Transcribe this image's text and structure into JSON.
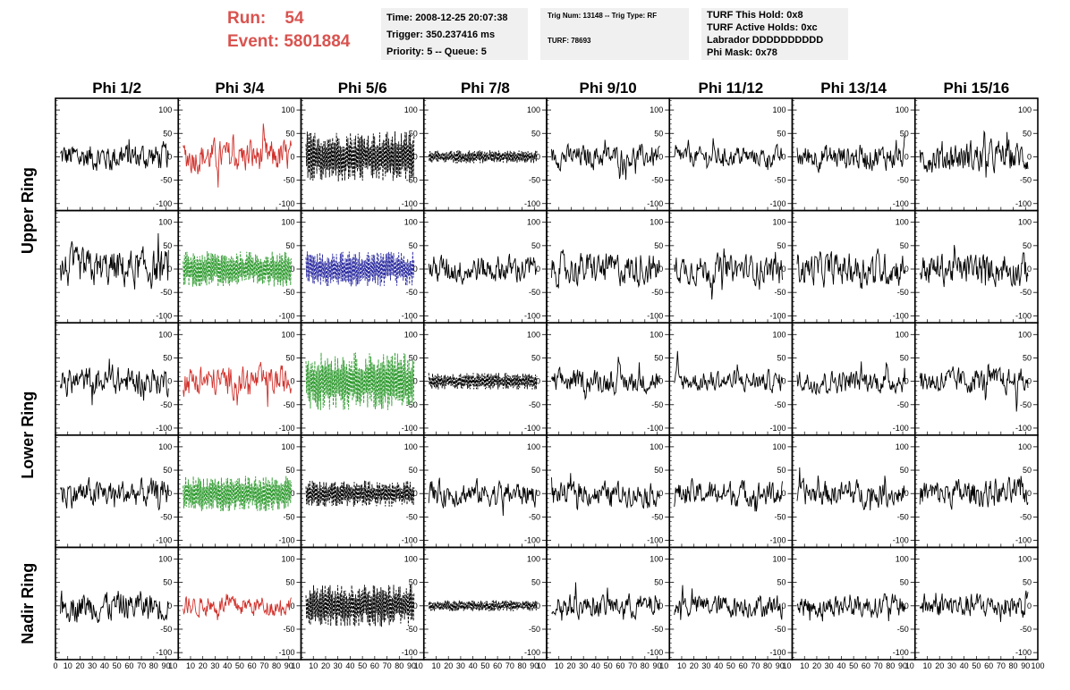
{
  "header": {
    "run_label": "Run:",
    "run_value": "54",
    "event_label": "Event:",
    "event_value": "5801884"
  },
  "info_box_1": {
    "line1": "Time: 2008-12-25 20:07:38",
    "line2": "Trigger: 350.237416 ms",
    "line3": "Priority: 5 -- Queue: 5"
  },
  "info_box_2": {
    "line1": "Trig Num: 13148 -- Trig Type: RF",
    "line2": "TURF: 78693"
  },
  "info_box_3": {
    "line1": "TURF This Hold: 0x8",
    "line2": "TURF Active Holds: 0xc",
    "line3": "Labrador DDDDDDDDDD",
    "line4": "Phi Mask: 0x78"
  },
  "colors": {
    "red": "#d0302a",
    "green": "#2e9a2e",
    "blue": "#2b2ba0",
    "black": "#000000"
  },
  "chart_data": {
    "type": "line",
    "columns": [
      "Phi 1/2",
      "Phi 3/4",
      "Phi 5/6",
      "Phi 7/8",
      "Phi 9/10",
      "Phi 11/12",
      "Phi 13/14",
      "Phi 15/16"
    ],
    "rows": [
      "upper-1",
      "upper-2",
      "lower-1",
      "lower-2",
      "nadir"
    ],
    "ring_labels": [
      {
        "text": "Upper Ring",
        "rows": [
          0,
          1
        ]
      },
      {
        "text": "Lower Ring",
        "rows": [
          2,
          3
        ]
      },
      {
        "text": "Nadir Ring",
        "rows": [
          4,
          4
        ]
      }
    ],
    "ylim": [
      -115,
      125
    ],
    "y_ticks": [
      -100,
      -50,
      0,
      50,
      100
    ],
    "xlim": [
      0,
      100
    ],
    "x_ticks": [
      0,
      10,
      20,
      30,
      40,
      50,
      60,
      70,
      80,
      90,
      100
    ],
    "x_tick_labels_first": [
      "0",
      "10",
      "20",
      "30",
      "40",
      "50",
      "60",
      "70",
      "80",
      "90",
      "10"
    ],
    "x_tick_labels_middle": [
      "10",
      "20",
      "30",
      "40",
      "50",
      "60",
      "70",
      "80",
      "90",
      "10"
    ],
    "x_tick_labels_last": [
      "10",
      "20",
      "30",
      "40",
      "50",
      "60",
      "70",
      "80",
      "90",
      "100"
    ],
    "trace_x_range": [
      4,
      92
    ],
    "panels": [
      [
        {
          "color": "black",
          "style": "solid",
          "amp": 22
        },
        {
          "color": "red",
          "style": "solid",
          "amp": 26
        },
        {
          "color": "black",
          "style": "dashed",
          "amp": 55
        },
        {
          "color": "black",
          "style": "dashed",
          "amp": 14
        },
        {
          "color": "black",
          "style": "solid",
          "amp": 18
        },
        {
          "color": "black",
          "style": "solid",
          "amp": 15
        },
        {
          "color": "black",
          "style": "solid",
          "amp": 20
        },
        {
          "color": "black",
          "style": "solid",
          "amp": 25
        }
      ],
      [
        {
          "color": "black",
          "style": "solid",
          "amp": 30
        },
        {
          "color": "green",
          "style": "dashed",
          "amp": 38
        },
        {
          "color": "blue",
          "style": "dashed",
          "amp": 38
        },
        {
          "color": "black",
          "style": "solid",
          "amp": 22
        },
        {
          "color": "black",
          "style": "solid",
          "amp": 25
        },
        {
          "color": "black",
          "style": "solid",
          "amp": 22
        },
        {
          "color": "black",
          "style": "solid",
          "amp": 26
        },
        {
          "color": "black",
          "style": "solid",
          "amp": 25
        }
      ],
      [
        {
          "color": "black",
          "style": "solid",
          "amp": 22
        },
        {
          "color": "red",
          "style": "solid",
          "amp": 24
        },
        {
          "color": "green",
          "style": "dashed",
          "amp": 62
        },
        {
          "color": "black",
          "style": "dashed",
          "amp": 18
        },
        {
          "color": "black",
          "style": "solid",
          "amp": 18
        },
        {
          "color": "black",
          "style": "solid",
          "amp": 16
        },
        {
          "color": "black",
          "style": "solid",
          "amp": 18
        },
        {
          "color": "black",
          "style": "solid",
          "amp": 20
        }
      ],
      [
        {
          "color": "black",
          "style": "solid",
          "amp": 22
        },
        {
          "color": "green",
          "style": "dashed",
          "amp": 38
        },
        {
          "color": "black",
          "style": "dashed",
          "amp": 28
        },
        {
          "color": "black",
          "style": "solid",
          "amp": 20
        },
        {
          "color": "black",
          "style": "solid",
          "amp": 18
        },
        {
          "color": "black",
          "style": "solid",
          "amp": 20
        },
        {
          "color": "black",
          "style": "solid",
          "amp": 20
        },
        {
          "color": "black",
          "style": "solid",
          "amp": 22
        }
      ],
      [
        {
          "color": "black",
          "style": "solid",
          "amp": 24
        },
        {
          "color": "red",
          "style": "solid",
          "amp": 16
        },
        {
          "color": "black",
          "style": "dashed",
          "amp": 45
        },
        {
          "color": "black",
          "style": "dashed",
          "amp": 12
        },
        {
          "color": "black",
          "style": "solid",
          "amp": 18
        },
        {
          "color": "black",
          "style": "solid",
          "amp": 18
        },
        {
          "color": "black",
          "style": "solid",
          "amp": 18
        },
        {
          "color": "black",
          "style": "solid",
          "amp": 20
        }
      ]
    ]
  }
}
